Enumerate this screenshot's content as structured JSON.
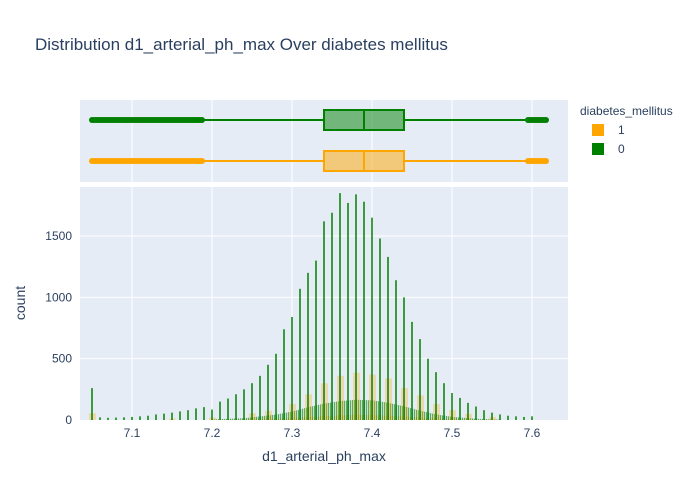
{
  "chart_data": {
    "type": "histogram",
    "title": "Distribution d1_arterial_ph_max Over diabetes mellitus",
    "xlabel": "d1_arterial_ph_max",
    "ylabel": "count",
    "xlim": [
      7.035,
      7.645
    ],
    "ylim": [
      0,
      1900
    ],
    "x_ticks": [
      7.1,
      7.2,
      7.3,
      7.4,
      7.5,
      7.6
    ],
    "x_tick_labels": [
      "7.1",
      "7.2",
      "7.3",
      "7.4",
      "7.5",
      "7.6"
    ],
    "y_ticks": [
      0,
      500,
      1000,
      1500
    ],
    "y_tick_labels": [
      "0",
      "500",
      "1000",
      "1500"
    ],
    "grid": true,
    "legend": {
      "title": "diabetes_mellitus",
      "placement": "right",
      "entries": [
        {
          "label": "1",
          "color": "#FFA500"
        },
        {
          "label": "0",
          "color": "#008000"
        }
      ]
    },
    "series": [
      {
        "name": "0",
        "color": "#008000",
        "spikes": [
          [
            7.05,
            260
          ],
          [
            7.06,
            22
          ],
          [
            7.07,
            18
          ],
          [
            7.08,
            20
          ],
          [
            7.09,
            22
          ],
          [
            7.1,
            25
          ],
          [
            7.11,
            30
          ],
          [
            7.12,
            35
          ],
          [
            7.13,
            45
          ],
          [
            7.14,
            52
          ],
          [
            7.15,
            60
          ],
          [
            7.16,
            70
          ],
          [
            7.17,
            80
          ],
          [
            7.18,
            95
          ],
          [
            7.19,
            105
          ],
          [
            7.2,
            85
          ],
          [
            7.21,
            150
          ],
          [
            7.22,
            175
          ],
          [
            7.23,
            210
          ],
          [
            7.24,
            250
          ],
          [
            7.25,
            300
          ],
          [
            7.26,
            360
          ],
          [
            7.27,
            450
          ],
          [
            7.28,
            540
          ],
          [
            7.29,
            740
          ],
          [
            7.3,
            840
          ],
          [
            7.31,
            1070
          ],
          [
            7.32,
            1200
          ],
          [
            7.33,
            1300
          ],
          [
            7.34,
            1620
          ],
          [
            7.35,
            1690
          ],
          [
            7.36,
            1850
          ],
          [
            7.37,
            1770
          ],
          [
            7.38,
            1840
          ],
          [
            7.39,
            1780
          ],
          [
            7.4,
            1650
          ],
          [
            7.41,
            1480
          ],
          [
            7.42,
            1330
          ],
          [
            7.43,
            1140
          ],
          [
            7.44,
            1000
          ],
          [
            7.45,
            800
          ],
          [
            7.46,
            660
          ],
          [
            7.47,
            500
          ],
          [
            7.48,
            390
          ],
          [
            7.49,
            300
          ],
          [
            7.5,
            220
          ],
          [
            7.51,
            180
          ],
          [
            7.52,
            140
          ],
          [
            7.53,
            110
          ],
          [
            7.54,
            80
          ],
          [
            7.55,
            60
          ],
          [
            7.56,
            45
          ],
          [
            7.57,
            35
          ],
          [
            7.58,
            30
          ],
          [
            7.59,
            25
          ],
          [
            7.6,
            30
          ]
        ],
        "background_envelope": [
          [
            7.2,
            5
          ],
          [
            7.24,
            15
          ],
          [
            7.28,
            45
          ],
          [
            7.3,
            70
          ],
          [
            7.32,
            105
          ],
          [
            7.34,
            135
          ],
          [
            7.36,
            155
          ],
          [
            7.38,
            165
          ],
          [
            7.4,
            160
          ],
          [
            7.42,
            140
          ],
          [
            7.44,
            110
          ],
          [
            7.46,
            75
          ],
          [
            7.48,
            45
          ],
          [
            7.5,
            25
          ],
          [
            7.53,
            10
          ],
          [
            7.56,
            3
          ]
        ],
        "box": {
          "min": 7.05,
          "lower_fence": 7.19,
          "q1": 7.34,
          "median": 7.39,
          "q3": 7.44,
          "upper_fence": 7.595,
          "max": 7.62
        }
      },
      {
        "name": "1",
        "color": "#FFA500",
        "spikes": [
          [
            7.05,
            55
          ],
          [
            7.15,
            12
          ],
          [
            7.2,
            20
          ],
          [
            7.25,
            55
          ],
          [
            7.27,
            75
          ],
          [
            7.3,
            130
          ],
          [
            7.32,
            210
          ],
          [
            7.34,
            300
          ],
          [
            7.36,
            360
          ],
          [
            7.38,
            385
          ],
          [
            7.4,
            370
          ],
          [
            7.42,
            340
          ],
          [
            7.44,
            260
          ],
          [
            7.46,
            200
          ],
          [
            7.48,
            130
          ],
          [
            7.5,
            80
          ],
          [
            7.52,
            50
          ],
          [
            7.55,
            25
          ]
        ],
        "background_envelope": [
          [
            7.2,
            3
          ],
          [
            7.24,
            5
          ],
          [
            7.28,
            12
          ],
          [
            7.3,
            18
          ],
          [
            7.32,
            25
          ],
          [
            7.34,
            32
          ],
          [
            7.36,
            38
          ],
          [
            7.38,
            42
          ],
          [
            7.4,
            40
          ],
          [
            7.42,
            35
          ],
          [
            7.44,
            28
          ],
          [
            7.46,
            20
          ],
          [
            7.48,
            12
          ],
          [
            7.5,
            6
          ],
          [
            7.53,
            3
          ],
          [
            7.56,
            1
          ]
        ],
        "box": {
          "min": 7.05,
          "lower_fence": 7.19,
          "q1": 7.34,
          "median": 7.39,
          "q3": 7.44,
          "upper_fence": 7.595,
          "max": 7.62
        }
      }
    ]
  }
}
